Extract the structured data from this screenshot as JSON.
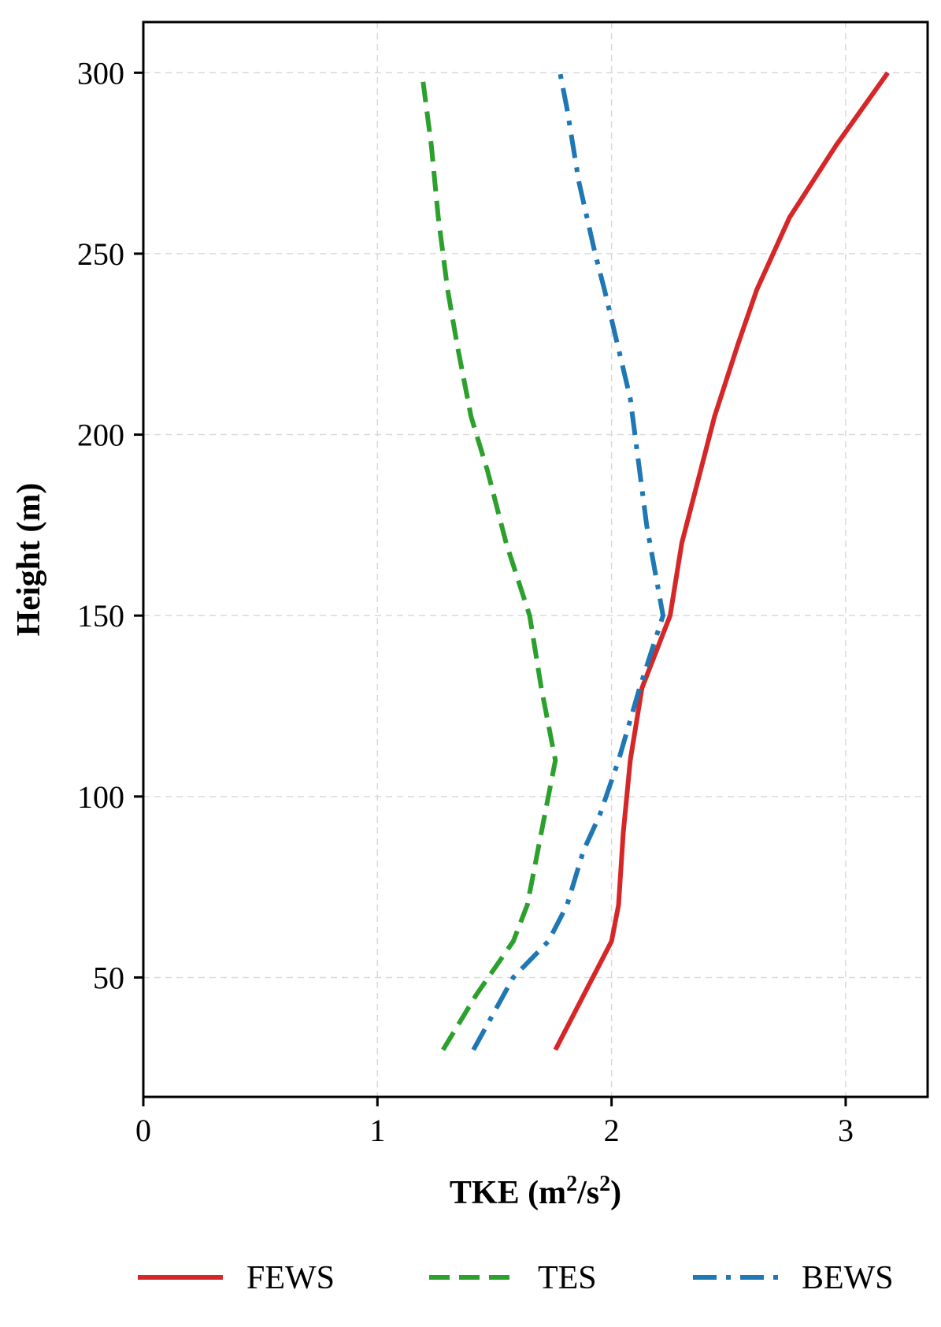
{
  "chart_data": {
    "type": "line",
    "xlabel": "TKE (m²/s²)",
    "xlabel_parts": {
      "main": "TKE (m",
      "sup1": "2",
      "mid": "/s",
      "sup2": "2",
      "end": ")"
    },
    "ylabel": "Height (m)",
    "xlim": [
      0,
      3.35
    ],
    "ylim": [
      17,
      314
    ],
    "xticks": [
      0,
      1,
      2,
      3
    ],
    "yticks": [
      50,
      100,
      150,
      200,
      250,
      300
    ],
    "grid": true,
    "legend_position": "bottom",
    "series": [
      {
        "name": "FEWS",
        "color": "#d62728",
        "dash": "solid",
        "points": [
          [
            1.76,
            30
          ],
          [
            1.88,
            45
          ],
          [
            2.0,
            60
          ],
          [
            2.03,
            70
          ],
          [
            2.04,
            80
          ],
          [
            2.05,
            90
          ],
          [
            2.08,
            110
          ],
          [
            2.13,
            130
          ],
          [
            2.25,
            150
          ],
          [
            2.3,
            170
          ],
          [
            2.38,
            190
          ],
          [
            2.44,
            205
          ],
          [
            2.54,
            225
          ],
          [
            2.62,
            240
          ],
          [
            2.76,
            260
          ],
          [
            2.96,
            280
          ],
          [
            3.18,
            300
          ]
        ]
      },
      {
        "name": "TES",
        "color": "#2ca02c",
        "dash": "dashed",
        "points": [
          [
            1.28,
            30
          ],
          [
            1.42,
            45
          ],
          [
            1.58,
            60
          ],
          [
            1.64,
            70
          ],
          [
            1.67,
            80
          ],
          [
            1.7,
            90
          ],
          [
            1.76,
            110
          ],
          [
            1.7,
            130
          ],
          [
            1.65,
            150
          ],
          [
            1.55,
            170
          ],
          [
            1.47,
            190
          ],
          [
            1.4,
            205
          ],
          [
            1.34,
            225
          ],
          [
            1.3,
            240
          ],
          [
            1.26,
            260
          ],
          [
            1.23,
            280
          ],
          [
            1.19,
            300
          ]
        ]
      },
      {
        "name": "BEWS",
        "color": "#1f77b4",
        "dash": "dash-dot",
        "points": [
          [
            1.41,
            30
          ],
          [
            1.58,
            50
          ],
          [
            1.73,
            60
          ],
          [
            1.81,
            70
          ],
          [
            1.88,
            85
          ],
          [
            1.95,
            95
          ],
          [
            2.03,
            110
          ],
          [
            2.12,
            130
          ],
          [
            2.22,
            150
          ],
          [
            2.15,
            175
          ],
          [
            2.08,
            210
          ],
          [
            1.97,
            240
          ],
          [
            1.93,
            250
          ],
          [
            1.86,
            270
          ],
          [
            1.81,
            290
          ],
          [
            1.78,
            300
          ]
        ]
      }
    ]
  }
}
